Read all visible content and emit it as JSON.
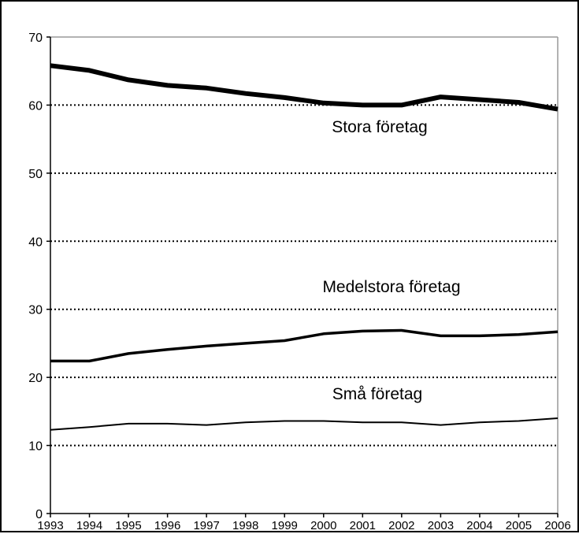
{
  "chart_data": {
    "type": "line",
    "x": [
      "1993",
      "1994",
      "1995",
      "1996",
      "1997",
      "1998",
      "1999",
      "2000",
      "2001",
      "2002",
      "2003",
      "2004",
      "2005",
      "2006"
    ],
    "ylim": [
      0,
      70
    ],
    "yticks": [
      0,
      10,
      20,
      30,
      40,
      50,
      60,
      70
    ],
    "grid": "horizontal dotted",
    "legend": "none",
    "title": "",
    "xlabel": "",
    "ylabel": "",
    "series": [
      {
        "name": "Stora företag",
        "values": [
          65.8,
          65.1,
          63.7,
          62.9,
          62.5,
          61.7,
          61.1,
          60.3,
          60.0,
          60.0,
          61.2,
          60.8,
          60.4,
          59.4
        ],
        "color": "#000000"
      },
      {
        "name": "Medelstora företag",
        "values": [
          22.4,
          22.4,
          23.5,
          24.1,
          24.6,
          25.0,
          25.4,
          26.4,
          26.8,
          26.9,
          26.1,
          26.1,
          26.3,
          26.7
        ],
        "color": "#000000"
      },
      {
        "name": "Små företag",
        "values": [
          12.3,
          12.7,
          13.2,
          13.2,
          13.0,
          13.4,
          13.6,
          13.6,
          13.4,
          13.4,
          13.0,
          13.4,
          13.6,
          14.0
        ],
        "color": "#000000"
      }
    ]
  }
}
